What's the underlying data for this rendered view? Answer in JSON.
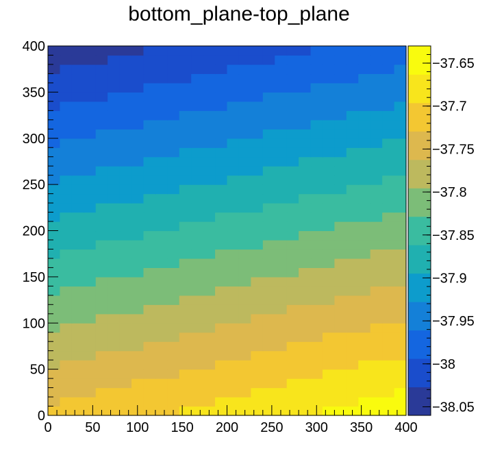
{
  "chart_data": {
    "type": "heatmap",
    "title": "bottom_plane-top_plane",
    "xlabel": "",
    "ylabel": "",
    "xlim": [
      0,
      400
    ],
    "ylim": [
      0,
      400
    ],
    "x_ticks": [
      0,
      50,
      100,
      150,
      200,
      250,
      300,
      350,
      400
    ],
    "x_tick_labels": [
      "0",
      "50",
      "100",
      "150",
      "200",
      "250",
      "300",
      "350",
      "400"
    ],
    "y_ticks": [
      0,
      50,
      100,
      150,
      200,
      250,
      300,
      350,
      400
    ],
    "y_tick_labels": [
      "0",
      "50",
      "100",
      "150",
      "200",
      "250",
      "300",
      "350",
      "400"
    ],
    "color_scale": {
      "min": -38.06,
      "max": -37.63,
      "ticks": [
        -37.65,
        -37.7,
        -37.75,
        -37.8,
        -37.85,
        -37.9,
        -37.95,
        -38,
        -38.05
      ],
      "tick_labels": [
        "−37.65",
        "−37.7",
        "−37.75",
        "−37.8",
        "−37.85",
        "−37.9",
        "−37.95",
        "−38",
        "−38.05"
      ],
      "colors_low_to_high": [
        "#2a3a98",
        "#1a4dcc",
        "#1466e0",
        "#1480d8",
        "#0d9ccc",
        "#20b0b0",
        "#3abca0",
        "#7cbd78",
        "#bdb95e",
        "#ddb84e",
        "#f3c732",
        "#f8e51c",
        "#f9fb0e"
      ]
    },
    "z_description": "value = bottom_plane - top_plane; highest (about -37.64) at x=400,y=0, lowest (about -38.05) at x=0,y=400, decreasing with y and increasing with x",
    "z_corners": {
      "x0_y0": -37.72,
      "x400_y0": -37.64,
      "x0_y400": -38.05,
      "x400_y400": -37.98
    }
  }
}
